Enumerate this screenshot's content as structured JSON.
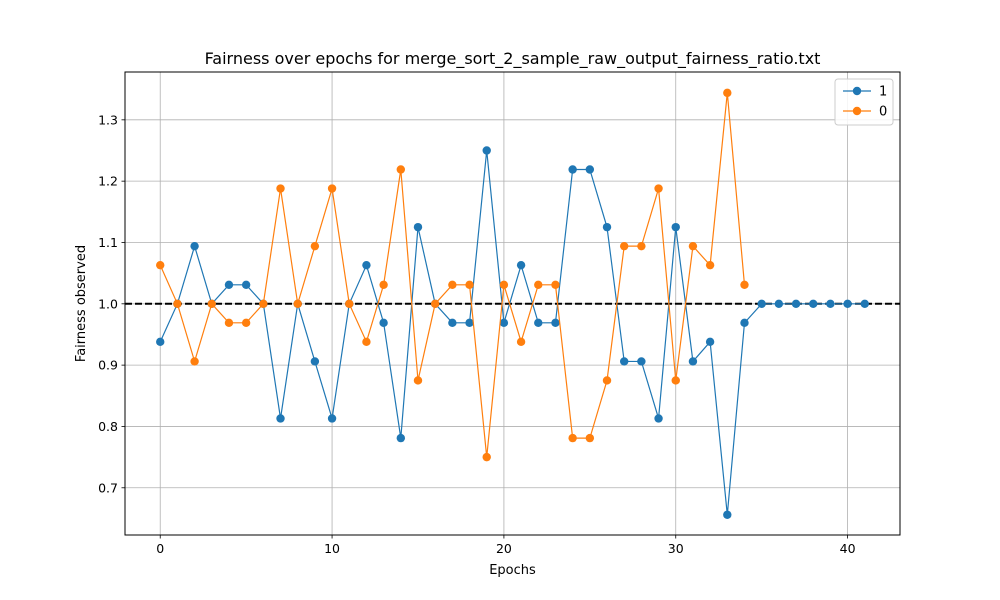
{
  "chart_data": {
    "type": "line",
    "title": "Fairness over epochs for merge_sort_2_sample_raw_output_fairness_ratio.txt",
    "xlabel": "Epochs",
    "ylabel": "Fairness observed",
    "xlim": [
      -2.05,
      43.05
    ],
    "ylim": [
      0.623,
      1.378
    ],
    "xticks": [
      0,
      10,
      20,
      30,
      40
    ],
    "yticks": [
      0.7,
      0.8,
      0.9,
      1.0,
      1.1,
      1.2,
      1.3
    ],
    "grid": true,
    "legend_position": "top-right",
    "reference_line": {
      "y": 1.0,
      "style": "dashed",
      "color": "#000000"
    },
    "series": [
      {
        "name": "1",
        "color": "#1f77b4",
        "x": [
          0,
          1,
          2,
          3,
          4,
          5,
          6,
          7,
          8,
          9,
          10,
          11,
          12,
          13,
          14,
          15,
          16,
          17,
          18,
          19,
          20,
          21,
          22,
          23,
          24,
          25,
          26,
          27,
          28,
          29,
          30,
          31,
          32,
          33,
          34,
          35,
          36,
          37,
          38,
          39,
          40,
          41
        ],
        "values": [
          0.938,
          1.0,
          1.094,
          1.0,
          1.031,
          1.031,
          1.0,
          0.813,
          1.0,
          0.906,
          0.813,
          1.0,
          1.063,
          0.969,
          0.781,
          1.125,
          1.0,
          0.969,
          0.969,
          1.25,
          0.969,
          1.063,
          0.969,
          0.969,
          1.219,
          1.219,
          1.125,
          0.906,
          0.906,
          0.813,
          1.125,
          0.906,
          0.938,
          0.656,
          0.969,
          1.0,
          1.0,
          1.0,
          1.0,
          1.0,
          1.0,
          1.0
        ]
      },
      {
        "name": "0",
        "color": "#ff7f0e",
        "x": [
          0,
          1,
          2,
          3,
          4,
          5,
          6,
          7,
          8,
          9,
          10,
          11,
          12,
          13,
          14,
          15,
          16,
          17,
          18,
          19,
          20,
          21,
          22,
          23,
          24,
          25,
          26,
          27,
          28,
          29,
          30,
          31,
          32,
          33,
          34
        ],
        "values": [
          1.063,
          1.0,
          0.906,
          1.0,
          0.969,
          0.969,
          1.0,
          1.188,
          1.0,
          1.094,
          1.188,
          1.0,
          0.938,
          1.031,
          1.219,
          0.875,
          1.0,
          1.031,
          1.031,
          0.75,
          1.031,
          0.938,
          1.031,
          1.031,
          0.781,
          0.781,
          0.875,
          1.094,
          1.094,
          1.188,
          0.875,
          1.094,
          1.063,
          1.344,
          1.031
        ]
      }
    ]
  }
}
